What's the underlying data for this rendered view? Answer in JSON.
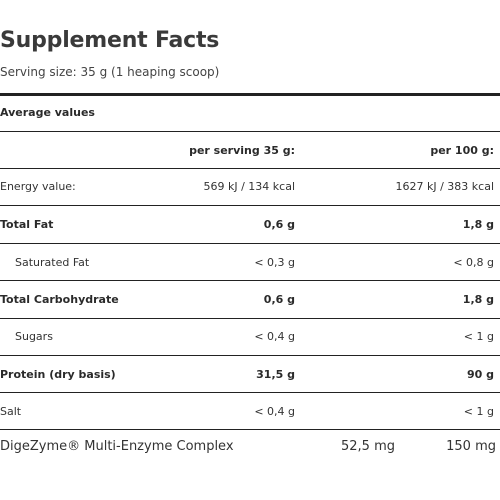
{
  "title": "Supplement Facts",
  "serving_size": "Serving size: 35 g (1 heaping scoop)",
  "section_header": "Average values",
  "columns": {
    "per_serving": "per serving 35 g:",
    "per_100g": "per 100 g:"
  },
  "rows": [
    {
      "label": "Energy value:",
      "per_serving": "569 kJ / 134 kcal",
      "per_100g": "1627 kJ / 383 kcal"
    },
    {
      "label": "Total Fat",
      "per_serving": "0,6 g",
      "per_100g": "1,8 g"
    },
    {
      "label": "Saturated Fat",
      "per_serving": "< 0,3 g",
      "per_100g": "< 0,8 g"
    },
    {
      "label": "Total Carbohydrate",
      "per_serving": "0,6 g",
      "per_100g": "1,8 g"
    },
    {
      "label": "Sugars",
      "per_serving": "< 0,4 g",
      "per_100g": "< 1 g"
    },
    {
      "label": "Protein (dry basis)",
      "per_serving": "31,5 g",
      "per_100g": "90 g"
    },
    {
      "label": "Salt",
      "per_serving": "< 0,4 g",
      "per_100g": "< 1 g"
    }
  ],
  "footer_row": {
    "label": "DigeZyme® Multi-Enzyme Complex",
    "per_serving": "52,5 mg",
    "per_100g": "150 mg"
  }
}
